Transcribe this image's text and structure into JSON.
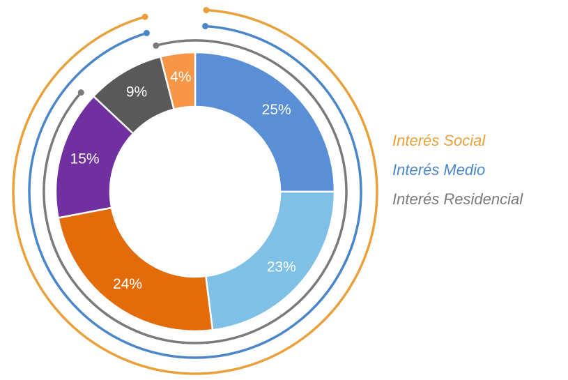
{
  "chart_data": {
    "type": "donut",
    "values": [
      25,
      23,
      24,
      15,
      9,
      4
    ],
    "value_labels": [
      "25%",
      "23%",
      "24%",
      "15%",
      "9%",
      "4%"
    ],
    "colors": [
      "#5a8fd6",
      "#7fc0e6",
      "#e36c0a",
      "#7030a0",
      "#595959",
      "#f79646"
    ],
    "legend": [
      {
        "label": "Interés Social",
        "color": "#e9a23b"
      },
      {
        "label": "Interés Medio",
        "color": "#4a86c8"
      },
      {
        "label": "Interés Residencial",
        "color": "#7a7a7a"
      }
    ]
  }
}
